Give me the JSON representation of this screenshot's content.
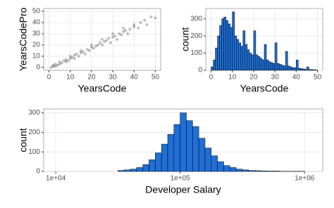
{
  "chart_data": [
    {
      "type": "scatter",
      "x_label": "YearsCode",
      "y_label": "YearsCodePro",
      "color": "#000000",
      "grid": true,
      "xlim": [
        -2.5,
        52.5
      ],
      "ylim": [
        -2.5,
        52.5
      ],
      "xticks": [
        0,
        10,
        20,
        30,
        40,
        50
      ],
      "yticks": [
        0,
        10,
        20,
        30,
        40,
        50
      ],
      "x": [
        1,
        2,
        2,
        3,
        3,
        4,
        5,
        5,
        6,
        7,
        8,
        8,
        9,
        10,
        10,
        11,
        12,
        12,
        13,
        14,
        15,
        15,
        16,
        17,
        18,
        19,
        20,
        20,
        21,
        22,
        23,
        24,
        25,
        25,
        26,
        27,
        28,
        29,
        30,
        30,
        31,
        32,
        33,
        34,
        35,
        35,
        36,
        37,
        38,
        40,
        40,
        42,
        43,
        45,
        46,
        48,
        50
      ],
      "y": [
        0,
        1,
        2,
        1,
        3,
        2,
        3,
        5,
        4,
        6,
        5,
        7,
        6,
        8,
        10,
        9,
        8,
        11,
        12,
        10,
        13,
        15,
        14,
        12,
        16,
        15,
        18,
        20,
        17,
        19,
        20,
        22,
        20,
        25,
        23,
        24,
        26,
        22,
        27,
        30,
        28,
        25,
        30,
        29,
        32,
        35,
        33,
        30,
        34,
        36,
        38,
        35,
        40,
        42,
        38,
        45,
        44
      ]
    },
    {
      "type": "histogram",
      "x_label": "YearsCode",
      "y_label": "count",
      "color": "#1f6fd6",
      "grid": true,
      "xlim": [
        -2.5,
        52.5
      ],
      "ylim": [
        0,
        360
      ],
      "xticks": [
        0,
        10,
        20,
        30,
        40,
        50
      ],
      "yticks": [
        0,
        100,
        200,
        300
      ],
      "bins": [
        0,
        1,
        2,
        3,
        4,
        5,
        6,
        7,
        8,
        9,
        10,
        11,
        12,
        13,
        14,
        15,
        16,
        17,
        18,
        19,
        20,
        21,
        22,
        23,
        24,
        25,
        26,
        27,
        28,
        29,
        30,
        31,
        32,
        33,
        34,
        35,
        36,
        37,
        38,
        39,
        40,
        41,
        42,
        43,
        44,
        45,
        46,
        47,
        48,
        49,
        50
      ],
      "values": [
        20,
        60,
        130,
        200,
        260,
        300,
        310,
        290,
        270,
        250,
        340,
        200,
        180,
        160,
        140,
        230,
        150,
        120,
        100,
        90,
        230,
        90,
        80,
        70,
        60,
        150,
        60,
        50,
        45,
        40,
        160,
        40,
        35,
        30,
        25,
        110,
        25,
        20,
        15,
        15,
        60,
        12,
        10,
        8,
        6,
        20,
        5,
        4,
        3,
        2
      ]
    },
    {
      "type": "histogram",
      "x_label": "Developer Salary",
      "y_label": "count",
      "color": "#1f6fd6",
      "grid": true,
      "x_log": true,
      "xlim": [
        8000,
        1400000
      ],
      "ylim": [
        0,
        320
      ],
      "xticks": [
        {
          "value": 10000,
          "label": "1e+04"
        },
        {
          "value": 100000,
          "label": "1e+05"
        },
        {
          "value": 1000000,
          "label": "1e+06"
        }
      ],
      "yticks": [
        0,
        100,
        200,
        300
      ],
      "bins": [
        31623,
        35481,
        39811,
        44668,
        50119,
        56234,
        63096,
        70795,
        79433,
        89125,
        100000,
        112202,
        125893,
        141254,
        158489,
        177828,
        199526,
        223872,
        251189,
        281838,
        316228,
        354813,
        398107,
        446684,
        501187,
        562341,
        630957,
        707946,
        794328,
        891251,
        1000000
      ],
      "values": [
        5,
        8,
        12,
        20,
        35,
        60,
        95,
        140,
        190,
        240,
        300,
        260,
        230,
        170,
        120,
        80,
        50,
        30,
        20,
        12,
        8,
        5,
        4,
        3,
        2,
        2,
        1,
        1,
        1,
        1
      ]
    }
  ]
}
